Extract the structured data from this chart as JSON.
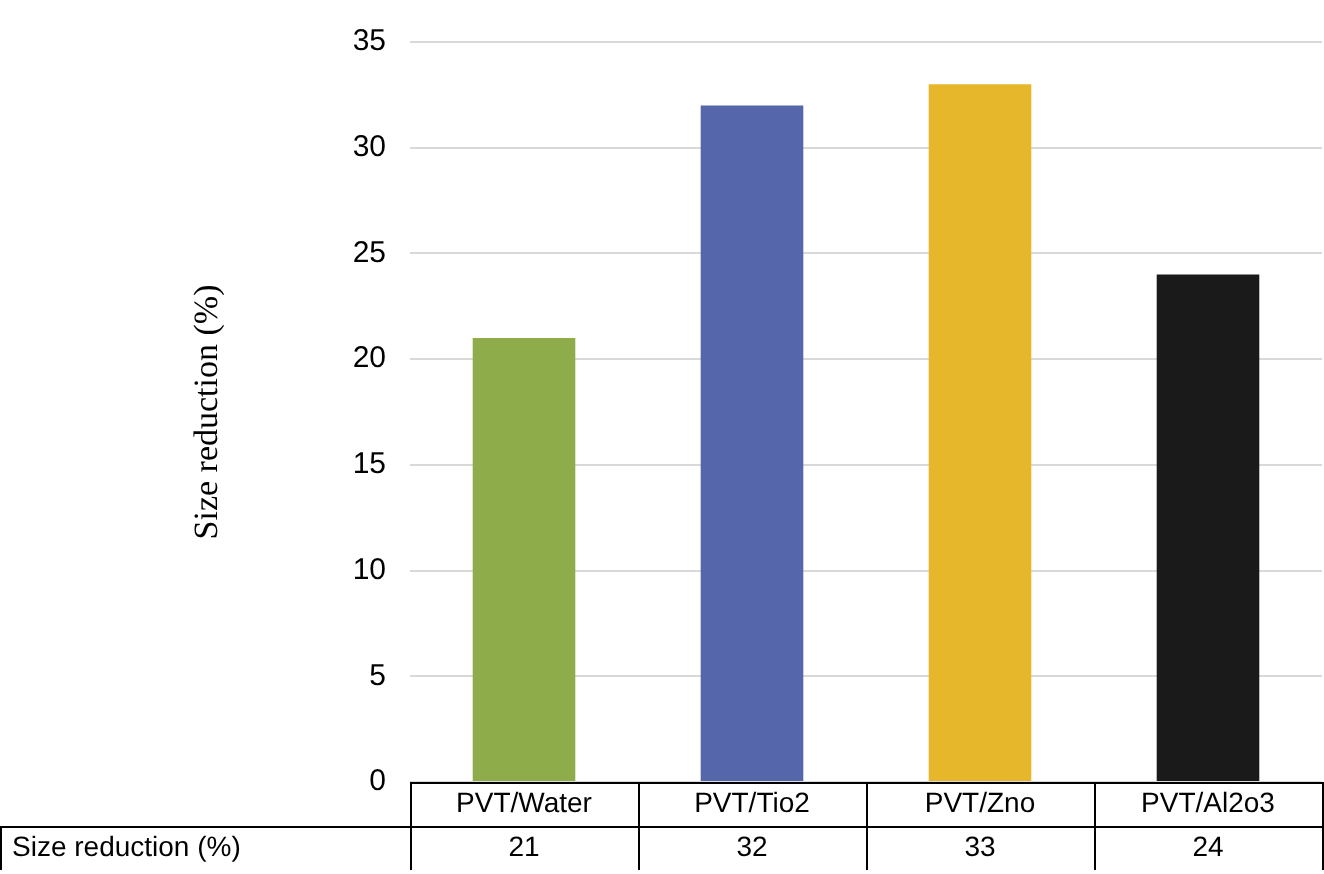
{
  "chart_data": {
    "type": "bar",
    "ylabel": "Size reduction (%)",
    "categories": [
      "PVT/Water",
      "PVT/Tio2",
      "PVT/Zno",
      "PVT/Al2o3"
    ],
    "series": [
      {
        "name": "Size reduction (%)",
        "colors": [
          "#8fac4a",
          "#5566aa",
          "#e6b72a",
          "#1a1a1a"
        ],
        "values": [
          21,
          32,
          33,
          24
        ]
      }
    ],
    "ylim": [
      0,
      35
    ],
    "yticks": [
      0,
      5,
      10,
      15,
      20,
      25,
      30,
      35
    ],
    "grid": "y",
    "data_labels": true,
    "legend": false
  }
}
